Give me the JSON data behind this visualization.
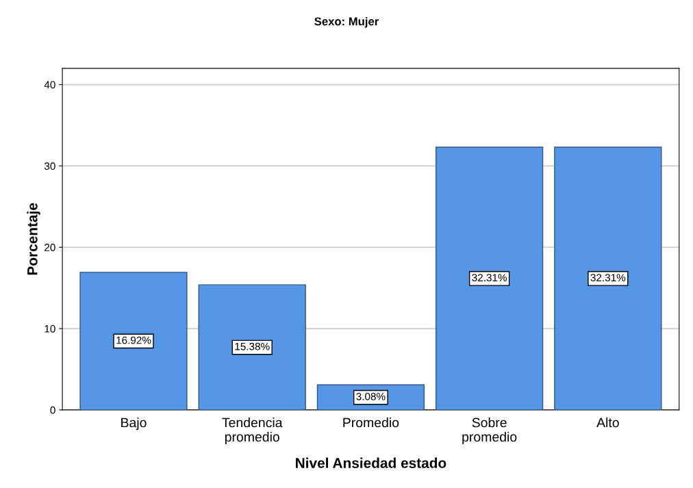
{
  "chart_data": {
    "type": "bar",
    "title": "Sexo: Mujer",
    "xlabel": "Nivel Ansiedad estado",
    "ylabel": "Porcentaje",
    "categories": [
      "Bajo",
      "Tendencia\npromedio",
      "Promedio",
      "Sobre\npromedio",
      "Alto"
    ],
    "values": [
      16.92,
      15.38,
      3.08,
      32.31,
      32.31
    ],
    "value_labels": [
      "16.92%",
      "15.38%",
      "3.08%",
      "32.31%",
      "32.31%"
    ],
    "color": "#5596e5",
    "ylim": [
      0,
      42
    ],
    "yticks": [
      0,
      10,
      20,
      30,
      40
    ],
    "grid": "y"
  }
}
